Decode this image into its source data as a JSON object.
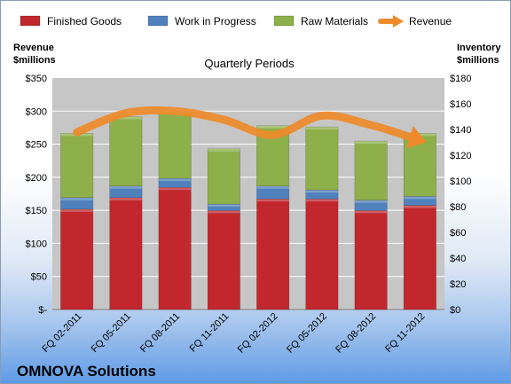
{
  "company_name": "OMNOVA Solutions",
  "colors": {
    "finished": "#c1272d",
    "wip": "#4f81bd",
    "raw": "#8db04a",
    "revenue": "#ee8a2a",
    "plot_bg": "#c6c6c6"
  },
  "chart_data": {
    "type": "bar",
    "stacked": true,
    "title": "Quarterly Periods",
    "ylabel_left": [
      "Revenue",
      "$millions"
    ],
    "ylabel_right": [
      "Inventory",
      "$millions"
    ],
    "categories": [
      "FQ 02-2011",
      "FQ 05-2011",
      "FQ 08-2011",
      "FQ 11-2011",
      "FQ 02-2012",
      "FQ 05-2012",
      "FQ 08-2012",
      "FQ 11-2012"
    ],
    "y_left_ticks": [
      "$-",
      "$50",
      "$100",
      "$150",
      "$200",
      "$250",
      "$300",
      "$350"
    ],
    "y_right_ticks": [
      "$0",
      "$20",
      "$40",
      "$60",
      "$80",
      "$100",
      "$120",
      "$140",
      "$160",
      "$180"
    ],
    "ylim_left": [
      0,
      350
    ],
    "ylim_right": [
      0,
      180
    ],
    "legend_position": "top",
    "series": [
      {
        "name": "Finished Goods",
        "axis": "right",
        "kind": "bar",
        "values": [
          78,
          87,
          95,
          77,
          86,
          86,
          77,
          81
        ]
      },
      {
        "name": "Work in Progress",
        "axis": "right",
        "kind": "bar",
        "values": [
          9,
          9,
          7,
          5,
          10,
          7,
          8,
          7
        ]
      },
      {
        "name": "Raw Materials",
        "axis": "right",
        "kind": "bar",
        "values": [
          50,
          54,
          52,
          43,
          47,
          49,
          46,
          49
        ]
      },
      {
        "name": "Revenue",
        "axis": "left",
        "kind": "line",
        "values": [
          268,
          297,
          300,
          287,
          264,
          293,
          279,
          256
        ]
      }
    ]
  }
}
